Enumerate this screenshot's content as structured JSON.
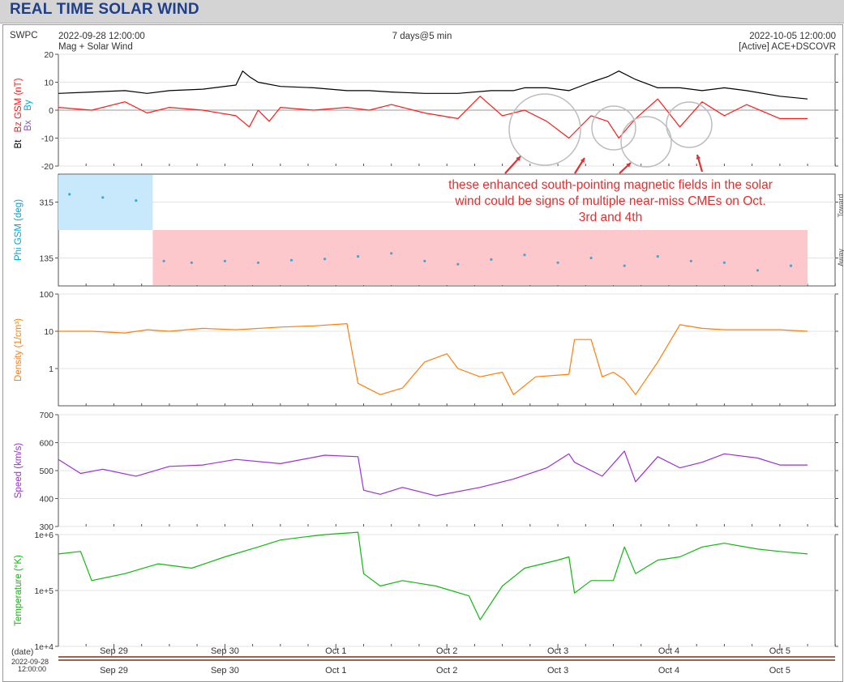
{
  "header": {
    "title": "REAL TIME SOLAR WIND",
    "source": "SWPC",
    "start_time": "2022-09-28 12:00:00",
    "subtitle": "Mag + Solar Wind",
    "span": "7 days@5 min",
    "end_time": "2022-10-05 12:00:00",
    "status": "[Active] ACE+DSCOVR"
  },
  "annotation": "these enhanced south-pointing magnetic fields in the solar wind could be signs of multiple near-miss CMEs on Oct. 3rd and 4th",
  "colors": {
    "bt": "#000000",
    "bz": "#ff1a1a",
    "bx": "#8a4fcf",
    "by": "#00a9d6",
    "phi_toward": "#c8e9fb",
    "phi_away": "#fcc8cc",
    "phi_points": "#3da8d8",
    "density": "#ff7f0e",
    "speed": "#9b30d9",
    "temperature": "#12b812",
    "annotation": "#e03030",
    "title": "#1f3f8a"
  },
  "xaxis": {
    "tick_labels": [
      "Sep 29",
      "Sep 30",
      "Oct 1",
      "Oct 2",
      "Oct 3",
      "Oct 4",
      "Oct 5"
    ],
    "date_label": "(date)",
    "start_label_1": "2022-09-28",
    "start_label_2": "12:00:00"
  },
  "side_labels": {
    "toward": "Toward",
    "away": "Away"
  },
  "chart_data": [
    {
      "panel": "mag",
      "type": "line",
      "ylabel_parts": [
        "Bt",
        "Bz GSM (nT)",
        "Bx",
        "By"
      ],
      "ylim": [
        -20,
        20
      ],
      "ytick_labels": [
        "20",
        "10",
        "0",
        "-10",
        "-20"
      ],
      "x_unit": "days since 2022-09-28 12:00",
      "series": [
        {
          "name": "Bt",
          "x": [
            0,
            0.3,
            0.6,
            0.8,
            1.0,
            1.3,
            1.6,
            1.66,
            1.72,
            1.8,
            2.0,
            2.3,
            2.6,
            2.8,
            3.0,
            3.3,
            3.6,
            3.9,
            4.1,
            4.2,
            4.4,
            4.6,
            4.8,
            4.95,
            5.05,
            5.2,
            5.4,
            5.6,
            5.8,
            6.0,
            6.2,
            6.5,
            6.75
          ],
          "y": [
            6,
            6.5,
            7,
            6,
            7,
            7.5,
            9,
            14,
            12,
            10,
            8.5,
            8,
            7,
            7,
            6.5,
            6,
            6,
            7,
            7,
            8,
            8,
            7,
            10,
            12,
            14,
            11,
            8,
            8,
            7,
            8,
            7,
            5,
            4
          ]
        },
        {
          "name": "Bz",
          "x": [
            0,
            0.3,
            0.6,
            0.8,
            1.0,
            1.3,
            1.6,
            1.72,
            1.8,
            1.9,
            2.0,
            2.3,
            2.6,
            2.8,
            3.0,
            3.3,
            3.6,
            3.8,
            4.0,
            4.2,
            4.4,
            4.6,
            4.8,
            4.95,
            5.05,
            5.2,
            5.4,
            5.6,
            5.8,
            6.0,
            6.2,
            6.5,
            6.75
          ],
          "y": [
            1,
            0,
            3,
            -1,
            1,
            0,
            -2,
            -6,
            0,
            -4,
            1,
            0,
            1,
            0,
            2,
            -1,
            -3,
            5,
            -2,
            0,
            -4,
            -10,
            -2,
            -4,
            -10,
            -3,
            4,
            -6,
            3,
            -2,
            2,
            -3,
            -3
          ]
        }
      ]
    },
    {
      "panel": "phi",
      "type": "scatter",
      "ylabel": "Phi GSM (deg)",
      "ylim": [
        45,
        405
      ],
      "ytick_labels": [
        "315",
        "135"
      ],
      "sectors": [
        {
          "start": 0,
          "end": 0.85,
          "sector": "toward"
        },
        {
          "start": 0.85,
          "end": 6.75,
          "sector": "away"
        }
      ],
      "x": [
        0.1,
        0.4,
        0.7,
        0.95,
        1.2,
        1.5,
        1.8,
        2.1,
        2.4,
        2.7,
        3.0,
        3.3,
        3.6,
        3.9,
        4.2,
        4.5,
        4.8,
        5.1,
        5.4,
        5.7,
        6.0,
        6.3,
        6.6
      ],
      "y": [
        340,
        330,
        320,
        125,
        120,
        125,
        120,
        128,
        132,
        140,
        150,
        125,
        115,
        130,
        145,
        120,
        135,
        110,
        140,
        125,
        120,
        95,
        110
      ]
    },
    {
      "panel": "density",
      "type": "line",
      "ylabel": "Density (1/cm³)",
      "scale": "log",
      "ylim": [
        0.1,
        100
      ],
      "ytick_labels": [
        "100",
        "10",
        "1"
      ],
      "x": [
        0,
        0.3,
        0.6,
        0.8,
        1.0,
        1.3,
        1.6,
        2.0,
        2.3,
        2.6,
        2.7,
        2.9,
        3.1,
        3.3,
        3.5,
        3.6,
        3.8,
        4.0,
        4.1,
        4.3,
        4.6,
        4.65,
        4.8,
        4.9,
        5.0,
        5.1,
        5.2,
        5.4,
        5.6,
        5.8,
        6.0,
        6.3,
        6.5,
        6.75
      ],
      "y": [
        10,
        10,
        9,
        11,
        10,
        12,
        11,
        13,
        14,
        16,
        0.4,
        0.2,
        0.3,
        1.5,
        2.5,
        1,
        0.6,
        0.8,
        0.2,
        0.6,
        0.7,
        6,
        6,
        0.6,
        0.8,
        0.5,
        0.2,
        1.5,
        15,
        12,
        11,
        11,
        11,
        10
      ]
    },
    {
      "panel": "speed",
      "type": "line",
      "ylabel": "Speed (km/s)",
      "ylim": [
        300,
        700
      ],
      "ytick_labels": [
        "700",
        "600",
        "500",
        "400",
        "300"
      ],
      "x": [
        0,
        0.2,
        0.4,
        0.7,
        1.0,
        1.3,
        1.6,
        2.0,
        2.4,
        2.7,
        2.75,
        2.9,
        3.1,
        3.4,
        3.8,
        4.1,
        4.4,
        4.6,
        4.65,
        4.8,
        4.9,
        5.1,
        5.2,
        5.4,
        5.6,
        5.8,
        6.0,
        6.3,
        6.5,
        6.75
      ],
      "y": [
        540,
        490,
        505,
        480,
        515,
        520,
        540,
        525,
        555,
        550,
        430,
        415,
        440,
        410,
        440,
        470,
        510,
        560,
        530,
        500,
        480,
        570,
        460,
        550,
        510,
        530,
        560,
        545,
        520,
        520
      ]
    },
    {
      "panel": "temperature",
      "type": "line",
      "ylabel": "Temperature (°K)",
      "scale": "log",
      "ylim": [
        10000,
        1000000
      ],
      "ytick_labels": [
        "1e+6",
        "1e+5",
        "1e+4"
      ],
      "x": [
        0,
        0.2,
        0.3,
        0.6,
        0.9,
        1.2,
        1.5,
        1.8,
        2.0,
        2.2,
        2.4,
        2.7,
        2.75,
        2.9,
        3.1,
        3.4,
        3.7,
        3.8,
        4.0,
        4.2,
        4.5,
        4.6,
        4.65,
        4.8,
        5.0,
        5.1,
        5.2,
        5.4,
        5.6,
        5.8,
        6.0,
        6.3,
        6.5,
        6.75
      ],
      "y": [
        450000,
        500000,
        150000,
        200000,
        300000,
        250000,
        400000,
        600000,
        800000,
        900000,
        1000000,
        1100000,
        200000,
        120000,
        150000,
        120000,
        80000,
        30000,
        120000,
        250000,
        350000,
        400000,
        90000,
        150000,
        150000,
        600000,
        200000,
        350000,
        400000,
        600000,
        700000,
        550000,
        500000,
        450000
      ]
    }
  ]
}
